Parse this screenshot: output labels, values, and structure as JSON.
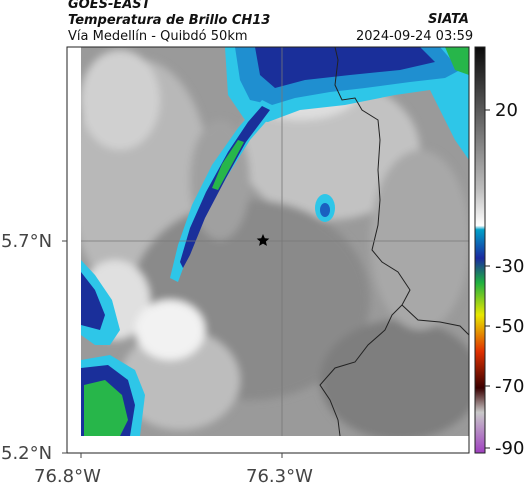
{
  "header": {
    "satellite": "GOES-EAST",
    "product": "Temperatura de Brillo CH13",
    "region": "Vía Medellín - Quibdó 50km",
    "agency": "SIATA",
    "timestamp": "2024-09-24 03:59"
  },
  "axes": {
    "y_ticks": [
      "5.7°N",
      "5.2°N"
    ],
    "x_ticks": [
      "76.8°W",
      "76.3°W"
    ]
  },
  "colorbar": {
    "ticks": [
      "20",
      "-30",
      "-50",
      "-70",
      "-90"
    ],
    "colors": [
      "#0a0a0a",
      "#bdbdbd",
      "#ffffff",
      "#00a0c8",
      "#1a2aa0",
      "#1eb040",
      "#e8e800",
      "#e03000",
      "#3a0000",
      "#c8c8c8",
      "#a040c0"
    ]
  },
  "map": {
    "marker": "star-marker",
    "colors": {
      "background": "#9a9a9a",
      "warm_gray": "#8c8c8c",
      "light_gray": "#d6d6d6",
      "cloud_cyan": "#2ec6e8",
      "cloud_blue": "#1a2f9a",
      "cloud_green": "#27b64a",
      "border_line": "#222222"
    }
  }
}
